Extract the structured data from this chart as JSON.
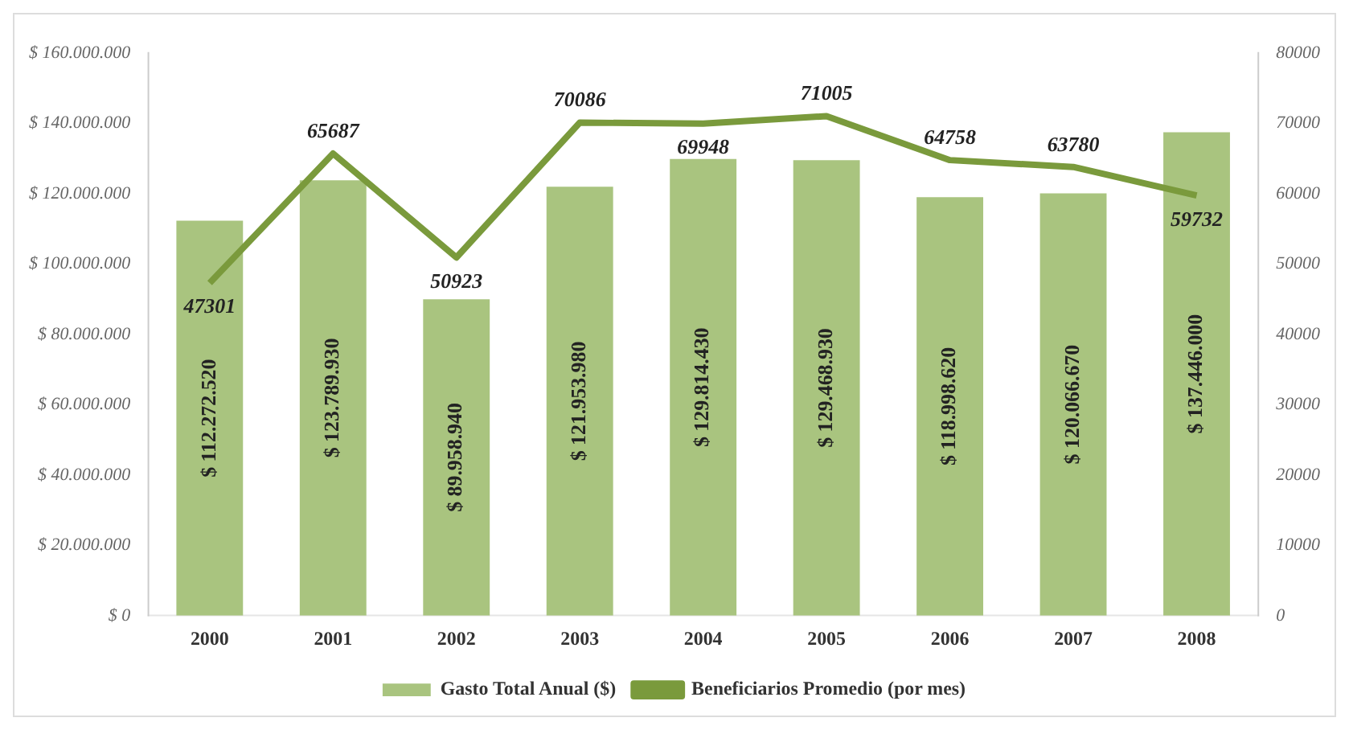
{
  "chart_data": {
    "type": "bar",
    "categories": [
      "2000",
      "2001",
      "2002",
      "2003",
      "2004",
      "2005",
      "2006",
      "2007",
      "2008"
    ],
    "series": [
      {
        "name": "Gasto Total Anual ($)",
        "color": "#a9c47f",
        "values": [
          112272520,
          123789930,
          89958940,
          121953980,
          129814430,
          129468930,
          118998620,
          120066670,
          137446000
        ],
        "value_labels": [
          "$ 112.272.520",
          "$ 123.789.930",
          "$ 89.958.940",
          "$ 121.953.980",
          "$ 129.814.430",
          "$ 129.468.930",
          "$ 118.998.620",
          "$ 120.066.670",
          "$ 137.446.000"
        ]
      },
      {
        "name": "Beneficiarios Promedio (por mes)",
        "type": "line",
        "axis": "y2",
        "color": "#7a9a3c",
        "values": [
          47301,
          65687,
          50923,
          70086,
          69948,
          71005,
          64758,
          63780,
          59732
        ]
      }
    ],
    "data_labels": true,
    "ylim": [
      0,
      160000000
    ],
    "yticks": [
      {
        "value": 0,
        "label": "$ 0"
      },
      {
        "value": 20000000,
        "label": "$ 20.000.000"
      },
      {
        "value": 40000000,
        "label": "$ 40.000.000"
      },
      {
        "value": 60000000,
        "label": "$ 60.000.000"
      },
      {
        "value": 80000000,
        "label": "$ 80.000.000"
      },
      {
        "value": 100000000,
        "label": "$ 100.000.000"
      },
      {
        "value": 120000000,
        "label": "$ 120.000.000"
      },
      {
        "value": 140000000,
        "label": "$ 140.000.000"
      },
      {
        "value": 160000000,
        "label": "$ 160.000.000"
      }
    ],
    "y2lim": [
      0,
      80000
    ],
    "y2ticks": [
      0,
      10000,
      20000,
      30000,
      40000,
      50000,
      60000,
      70000,
      80000
    ],
    "grid": false,
    "legend": "bottom",
    "marker": "none",
    "line_style": "solid"
  }
}
